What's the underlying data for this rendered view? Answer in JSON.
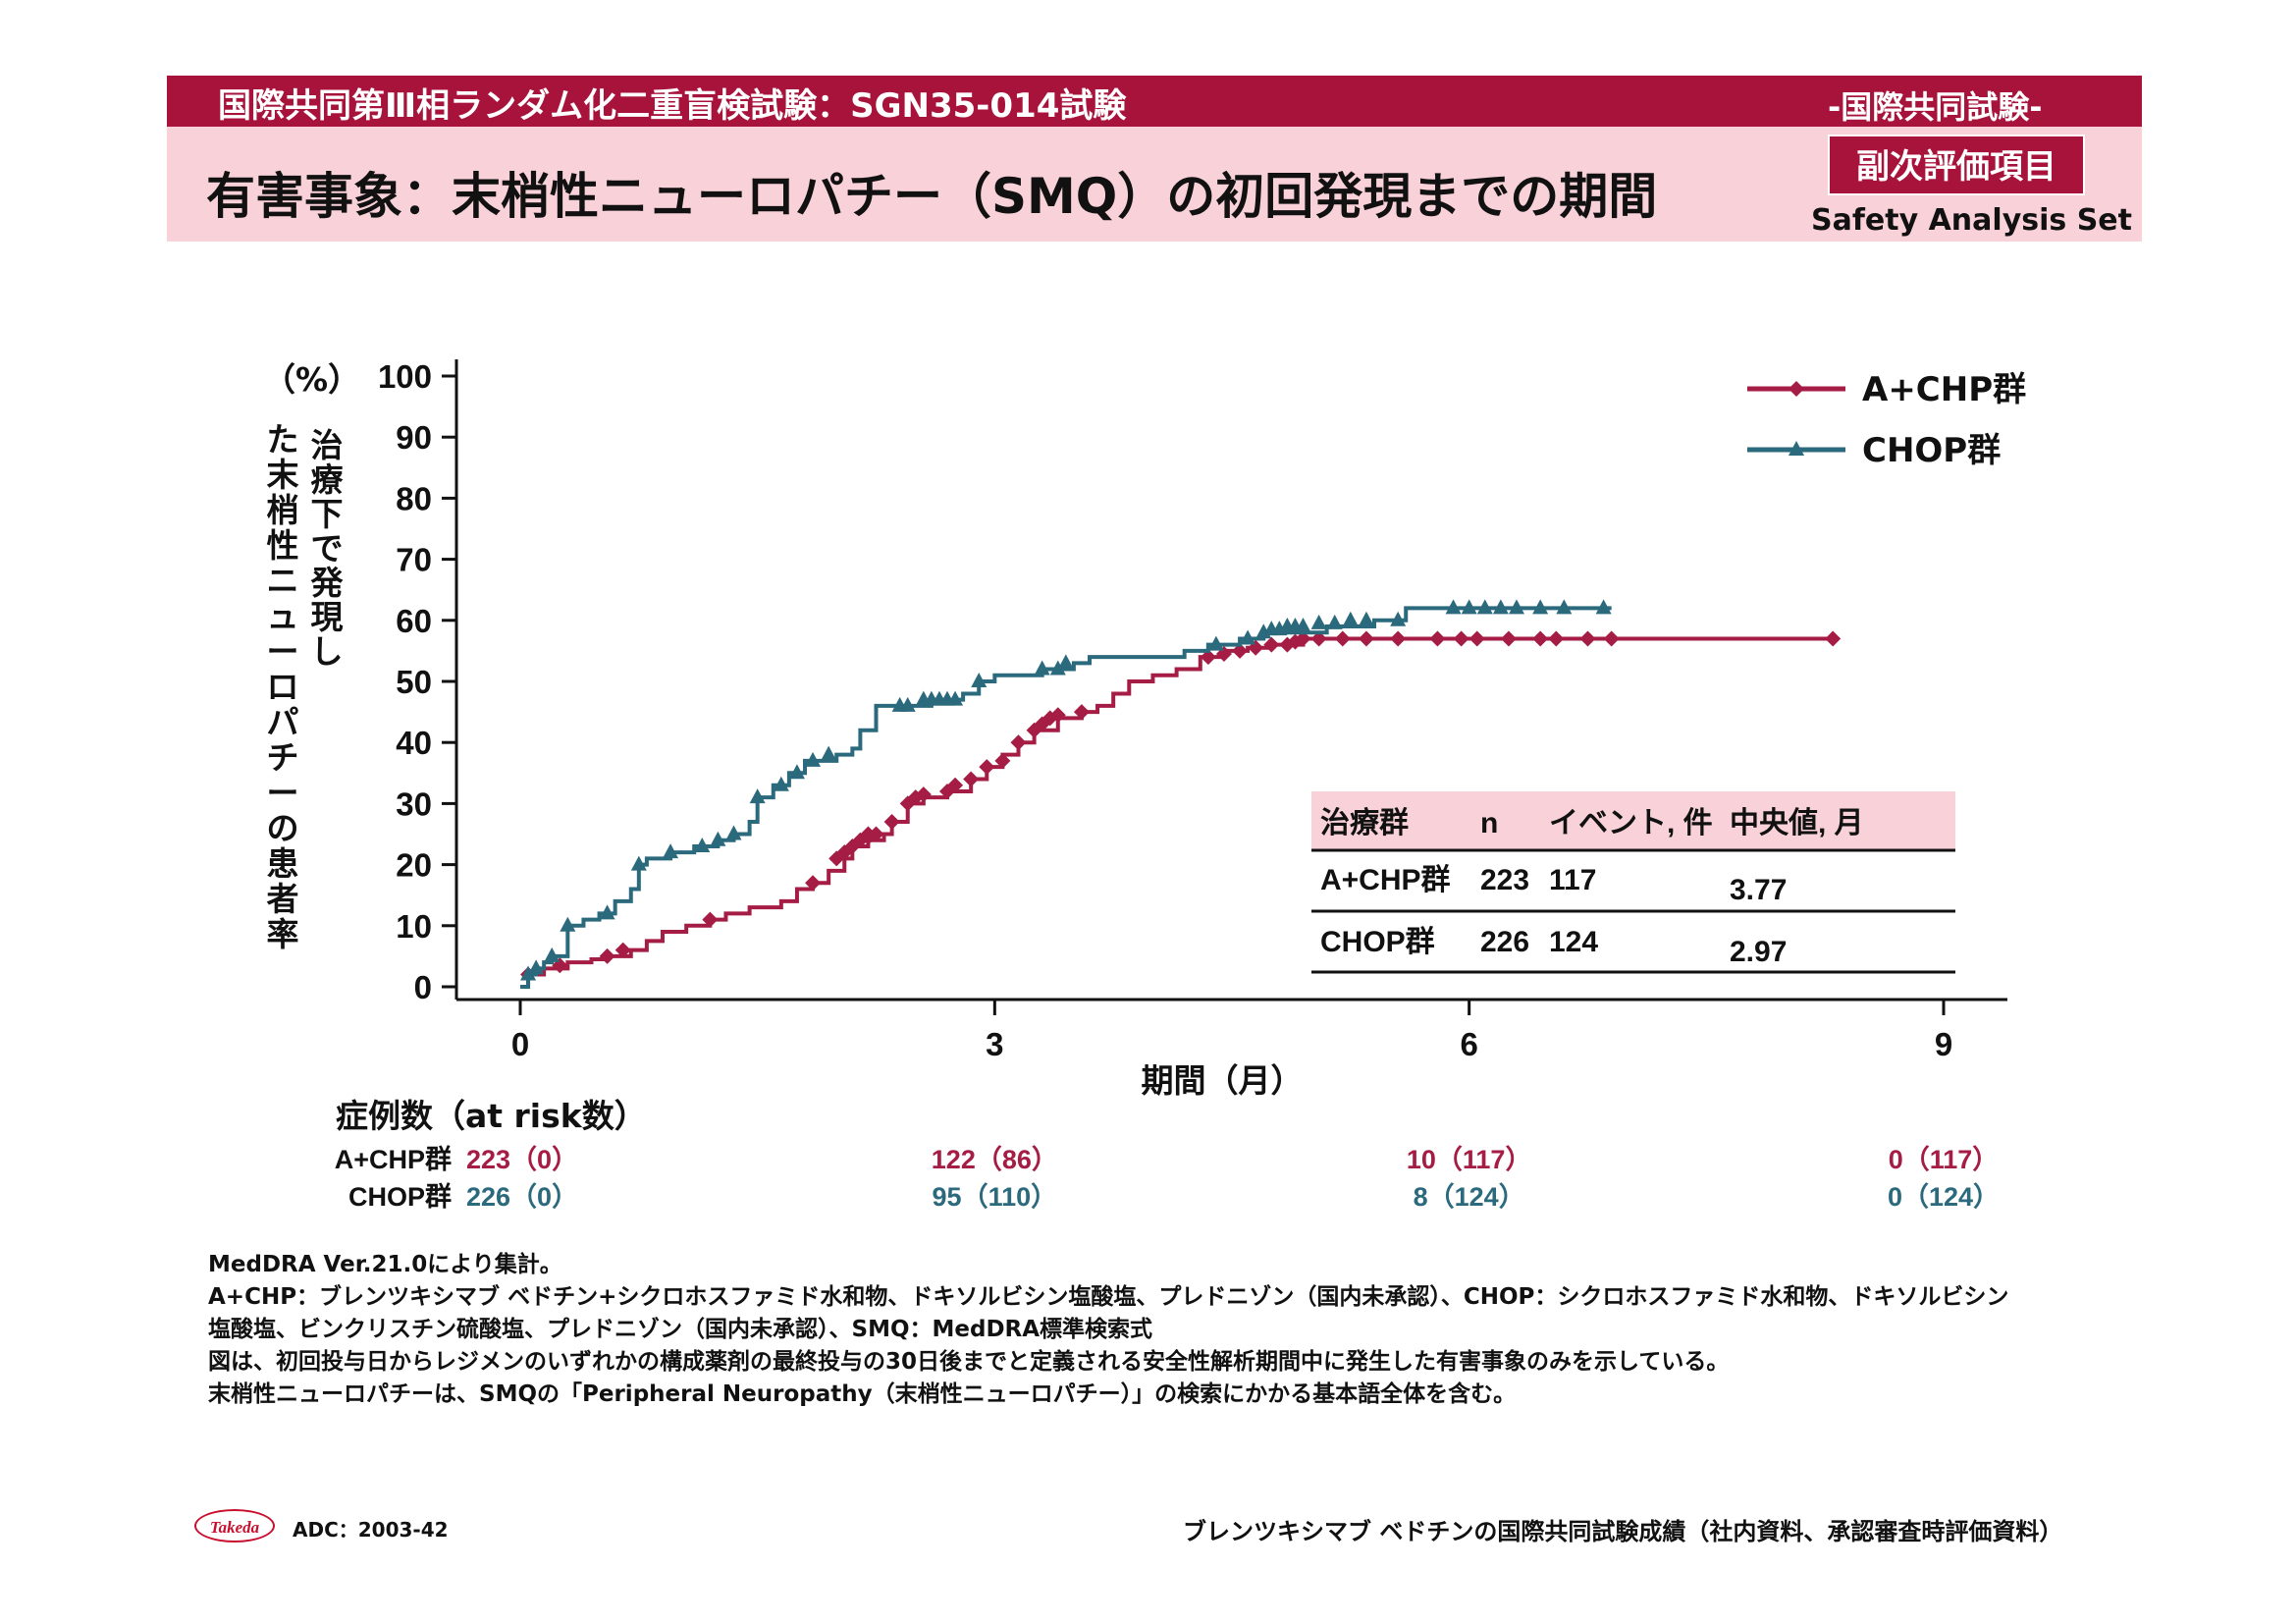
{
  "header": {
    "study": "国際共同第Ⅲ相ランダム化二重盲検試験：SGN35-014試験",
    "intl_tag": "-国際共同試験-",
    "title": "有害事象：末梢性ニューロパチー（SMQ）の初回発現までの期間",
    "endpoint_badge": "副次評価項目",
    "analysis_set": "Safety Analysis Set"
  },
  "chart_data": {
    "type": "line",
    "subtype": "cumulative incidence step curve with censor marks",
    "y_unit_label": "（%）",
    "ylabel": "治療下で発現した末梢性ニューロパチーの患者率",
    "xlabel": "期間（月）",
    "xlim": [
      0,
      9
    ],
    "ylim": [
      0,
      100
    ],
    "x_ticks": [
      0,
      3,
      6,
      9
    ],
    "y_ticks": [
      0,
      10,
      20,
      30,
      40,
      50,
      60,
      70,
      80,
      90,
      100
    ],
    "grid": false,
    "legend_position": "top-right",
    "series": [
      {
        "name": "A+CHP群",
        "color": "#a51d44",
        "marker": "diamond",
        "points": [
          [
            0,
            0
          ],
          [
            0.05,
            2
          ],
          [
            0.15,
            3
          ],
          [
            0.3,
            4
          ],
          [
            0.45,
            4.5
          ],
          [
            0.55,
            5
          ],
          [
            0.7,
            6
          ],
          [
            0.8,
            7.5
          ],
          [
            0.9,
            9
          ],
          [
            1.05,
            10
          ],
          [
            1.2,
            11
          ],
          [
            1.3,
            12
          ],
          [
            1.45,
            13
          ],
          [
            1.65,
            14
          ],
          [
            1.75,
            16
          ],
          [
            1.85,
            17
          ],
          [
            1.95,
            19
          ],
          [
            2.05,
            21
          ],
          [
            2.1,
            23
          ],
          [
            2.2,
            24
          ],
          [
            2.3,
            25
          ],
          [
            2.35,
            27
          ],
          [
            2.45,
            30
          ],
          [
            2.55,
            31
          ],
          [
            2.7,
            32
          ],
          [
            2.85,
            34
          ],
          [
            2.95,
            36
          ],
          [
            3.05,
            38
          ],
          [
            3.15,
            40
          ],
          [
            3.25,
            42
          ],
          [
            3.4,
            44
          ],
          [
            3.55,
            45
          ],
          [
            3.65,
            46
          ],
          [
            3.75,
            48
          ],
          [
            3.85,
            50
          ],
          [
            4.0,
            51
          ],
          [
            4.15,
            52
          ],
          [
            4.3,
            54
          ],
          [
            4.45,
            55
          ],
          [
            4.6,
            55.5
          ],
          [
            4.75,
            56
          ],
          [
            4.95,
            57
          ],
          [
            8.3,
            57
          ]
        ],
        "censors": [
          [
            0.05,
            2
          ],
          [
            0.25,
            3.5
          ],
          [
            0.55,
            5
          ],
          [
            0.65,
            6
          ],
          [
            1.2,
            11
          ],
          [
            1.85,
            17
          ],
          [
            2.0,
            21
          ],
          [
            2.05,
            22
          ],
          [
            2.1,
            23
          ],
          [
            2.15,
            24
          ],
          [
            2.2,
            24.5
          ],
          [
            2.2,
            25
          ],
          [
            2.25,
            25
          ],
          [
            2.35,
            27
          ],
          [
            2.45,
            30
          ],
          [
            2.5,
            31
          ],
          [
            2.55,
            31.5
          ],
          [
            2.7,
            32
          ],
          [
            2.75,
            33
          ],
          [
            2.85,
            34
          ],
          [
            2.95,
            36
          ],
          [
            3.05,
            37
          ],
          [
            3.15,
            40
          ],
          [
            3.25,
            42
          ],
          [
            3.3,
            43
          ],
          [
            3.35,
            44
          ],
          [
            3.4,
            44.5
          ],
          [
            3.55,
            45
          ],
          [
            4.35,
            54
          ],
          [
            4.45,
            54.5
          ],
          [
            4.55,
            55
          ],
          [
            4.65,
            55.5
          ],
          [
            4.75,
            56
          ],
          [
            4.85,
            56
          ],
          [
            4.9,
            56.5
          ],
          [
            4.95,
            57
          ],
          [
            5.05,
            57
          ],
          [
            5.2,
            57
          ],
          [
            5.35,
            57
          ],
          [
            5.55,
            57
          ],
          [
            5.8,
            57
          ],
          [
            5.95,
            57
          ],
          [
            6.05,
            57
          ],
          [
            6.25,
            57
          ],
          [
            6.45,
            57
          ],
          [
            6.55,
            57
          ],
          [
            6.75,
            57
          ],
          [
            6.9,
            57
          ],
          [
            8.3,
            57
          ]
        ]
      },
      {
        "name": "CHOP群",
        "color": "#2b6a7d",
        "marker": "triangle",
        "points": [
          [
            0,
            0
          ],
          [
            0.05,
            2
          ],
          [
            0.1,
            3
          ],
          [
            0.15,
            4
          ],
          [
            0.2,
            5
          ],
          [
            0.3,
            10
          ],
          [
            0.4,
            11
          ],
          [
            0.5,
            12
          ],
          [
            0.6,
            14
          ],
          [
            0.7,
            16
          ],
          [
            0.75,
            20
          ],
          [
            0.8,
            21
          ],
          [
            0.95,
            22
          ],
          [
            1.1,
            23
          ],
          [
            1.25,
            24
          ],
          [
            1.35,
            25
          ],
          [
            1.45,
            27
          ],
          [
            1.5,
            31
          ],
          [
            1.6,
            33
          ],
          [
            1.7,
            35
          ],
          [
            1.8,
            37
          ],
          [
            2.0,
            38
          ],
          [
            2.1,
            39
          ],
          [
            2.15,
            42
          ],
          [
            2.25,
            46
          ],
          [
            2.4,
            46
          ],
          [
            2.6,
            47
          ],
          [
            2.8,
            48
          ],
          [
            2.9,
            50
          ],
          [
            3.0,
            51
          ],
          [
            3.3,
            52
          ],
          [
            3.5,
            53
          ],
          [
            3.6,
            54
          ],
          [
            4.2,
            55
          ],
          [
            4.35,
            56
          ],
          [
            4.55,
            57
          ],
          [
            4.7,
            58
          ],
          [
            5.1,
            59
          ],
          [
            5.4,
            60
          ],
          [
            5.6,
            62
          ],
          [
            6.9,
            62
          ]
        ],
        "censors": [
          [
            0.05,
            2
          ],
          [
            0.1,
            3
          ],
          [
            0.2,
            5
          ],
          [
            0.3,
            10
          ],
          [
            0.55,
            12
          ],
          [
            0.75,
            20
          ],
          [
            0.95,
            22
          ],
          [
            1.15,
            23
          ],
          [
            1.25,
            24
          ],
          [
            1.35,
            25
          ],
          [
            1.5,
            31
          ],
          [
            1.65,
            33
          ],
          [
            1.75,
            35
          ],
          [
            1.85,
            37
          ],
          [
            1.95,
            38
          ],
          [
            2.4,
            46
          ],
          [
            2.45,
            46
          ],
          [
            2.55,
            47
          ],
          [
            2.6,
            47
          ],
          [
            2.65,
            47
          ],
          [
            2.7,
            47
          ],
          [
            2.75,
            47
          ],
          [
            2.9,
            50
          ],
          [
            3.3,
            52
          ],
          [
            3.4,
            52
          ],
          [
            3.45,
            53
          ],
          [
            4.4,
            56
          ],
          [
            4.6,
            57
          ],
          [
            4.7,
            58
          ],
          [
            4.75,
            58.5
          ],
          [
            4.8,
            58.5
          ],
          [
            4.85,
            59
          ],
          [
            4.9,
            59
          ],
          [
            4.95,
            59
          ],
          [
            5.05,
            59.5
          ],
          [
            5.15,
            59.5
          ],
          [
            5.25,
            60
          ],
          [
            5.35,
            60
          ],
          [
            5.55,
            60
          ],
          [
            5.9,
            62
          ],
          [
            6.0,
            62
          ],
          [
            6.1,
            62
          ],
          [
            6.2,
            62
          ],
          [
            6.3,
            62
          ],
          [
            6.45,
            62
          ],
          [
            6.6,
            62
          ],
          [
            6.85,
            62
          ]
        ]
      }
    ]
  },
  "summary_table": {
    "headers": [
      "治療群",
      "n",
      "イベント, 件",
      "中央値, 月"
    ],
    "rows": [
      [
        "A+CHP群",
        "223",
        "117",
        "3.77"
      ],
      [
        "CHOP群",
        "226",
        "124",
        "2.97"
      ]
    ]
  },
  "at_risk": {
    "title": "症例数（at risk数）",
    "rows": [
      {
        "label": "A+CHP群",
        "values": [
          "223（0）",
          "122（86）",
          "10（117）",
          "0（117）"
        ]
      },
      {
        "label": "CHOP群",
        "values": [
          "226（0）",
          "95（110）",
          "8（124）",
          "0（124）"
        ]
      }
    ]
  },
  "footnotes": [
    "MedDRA Ver.21.0により集計。",
    "A+CHP：ブレンツキシマブ ベドチン+シクロホスファミド水和物、ドキソルビシン塩酸塩、プレドニゾン（国内未承認）、CHOP：シクロホスファミド水和物、ドキソルビシン",
    "塩酸塩、ビンクリスチン硫酸塩、プレドニゾン（国内未承認）、SMQ：MedDRA標準検索式",
    "図は、初回投与日からレジメンのいずれかの構成薬剤の最終投与の30日後までと定義される安全性解析期間中に発生した有害事象のみを示している。",
    "末梢性ニューロパチーは、SMQの「Peripheral Neuropathy（末梢性ニューロパチー）」の検索にかかる基本語全体を含む。"
  ],
  "footer": {
    "logo_text": "Takeda",
    "code": "ADC：2003-42",
    "source": "ブレンツキシマブ ベドチンの国際共同試験成績（社内資料、承認審査時評価資料）"
  },
  "colors": {
    "brand": "#a8133c",
    "band": "#f9d2d9",
    "a_chp": "#a51d44",
    "chop": "#2b6a7d"
  }
}
